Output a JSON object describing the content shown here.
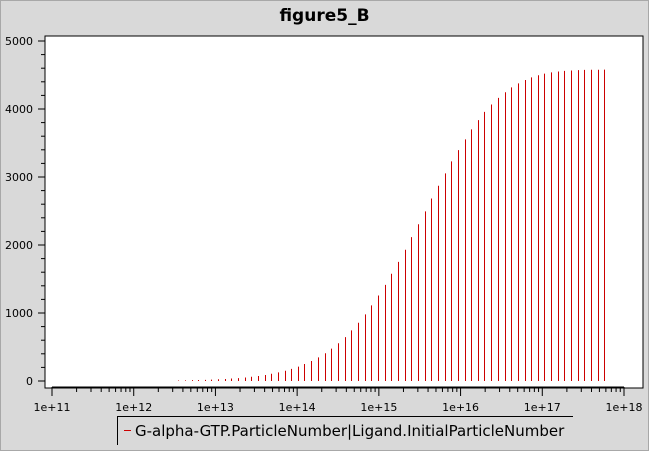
{
  "chart_data": {
    "type": "bar",
    "title": "figure5_B",
    "xlabel": "",
    "ylabel": "",
    "x_scale": "log",
    "xlim": [
      100000000000.0,
      1e+18
    ],
    "ylim": [
      0,
      5000
    ],
    "x_ticks": [
      "1e+11",
      "1e+12",
      "1e+13",
      "1e+14",
      "1e+15",
      "1e+16",
      "1e+17",
      "1e+18"
    ],
    "y_ticks": [
      "0",
      "1000",
      "2000",
      "3000",
      "4000",
      "5000"
    ],
    "legend_position": "bottom",
    "grid": false,
    "series": [
      {
        "name": "G-alpha-GTP.ParticleNumber|Ligand.InitialParticleNumber",
        "color": "#cc0000",
        "x": [
          3500000000000.0,
          4200000000000.0,
          5100000000000.0,
          6100000000000.0,
          7400000000000.0,
          8900000000000.0,
          10800000000000.0,
          13000000000000.0,
          15700000000000.0,
          18900000000000.0,
          22800000000000.0,
          27500000000000.0,
          33200000000000.0,
          40000000000000.0,
          48300000000000.0,
          58300000000000.0,
          70300000000000.0,
          84800000000000.0,
          102000000000000.0,
          123000000000000.0,
          149000000000000.0,
          180000000000000.0,
          217000000000000.0,
          262000000000000.0,
          316000000000000.0,
          381000000000000.0,
          460000000000000.0,
          555000000000000.0,
          669000000000000.0,
          807000000000000.0,
          974000000000000.0,
          1180000000000000.0,
          1420000000000000.0,
          1710000000000000.0,
          2060000000000000.0,
          2490000000000000.0,
          3000000000000000.0,
          3630000000000000.0,
          4370000000000000.0,
          5280000000000000.0,
          6370000000000000.0,
          7680000000000000.0,
          9270000000000000.0,
          1.12e+16,
          1.35e+16,
          1.63e+16,
          1.96e+16,
          2.37e+16,
          2.86e+16,
          3.45e+16,
          4.16e+16,
          5.02e+16,
          6.06e+16,
          7.31e+16,
          8.82e+16,
          1.06e+17,
          1.28e+17,
          1.55e+17,
          1.87e+17,
          2.25e+17,
          2.72e+17,
          3.28e+17,
          3.96e+17,
          4.78e+17,
          5.76e+17
        ],
        "values": [
          8,
          10,
          12,
          14,
          17,
          21,
          25,
          30,
          36,
          43,
          52,
          62,
          74,
          89,
          106,
          126,
          150,
          178,
          211,
          250,
          295,
          347,
          408,
          477,
          556,
          645,
          745,
          856,
          979,
          1113,
          1258,
          1413,
          1578,
          1751,
          1931,
          2116,
          2305,
          2495,
          2684,
          2871,
          3053,
          3229,
          3396,
          3554,
          3701,
          3836,
          3958,
          4067,
          4163,
          4247,
          4318,
          4377,
          4426,
          4465,
          4496,
          4520,
          4538,
          4551,
          4561,
          4567,
          4572,
          4575,
          4577,
          4578,
          4579
        ]
      }
    ]
  }
}
